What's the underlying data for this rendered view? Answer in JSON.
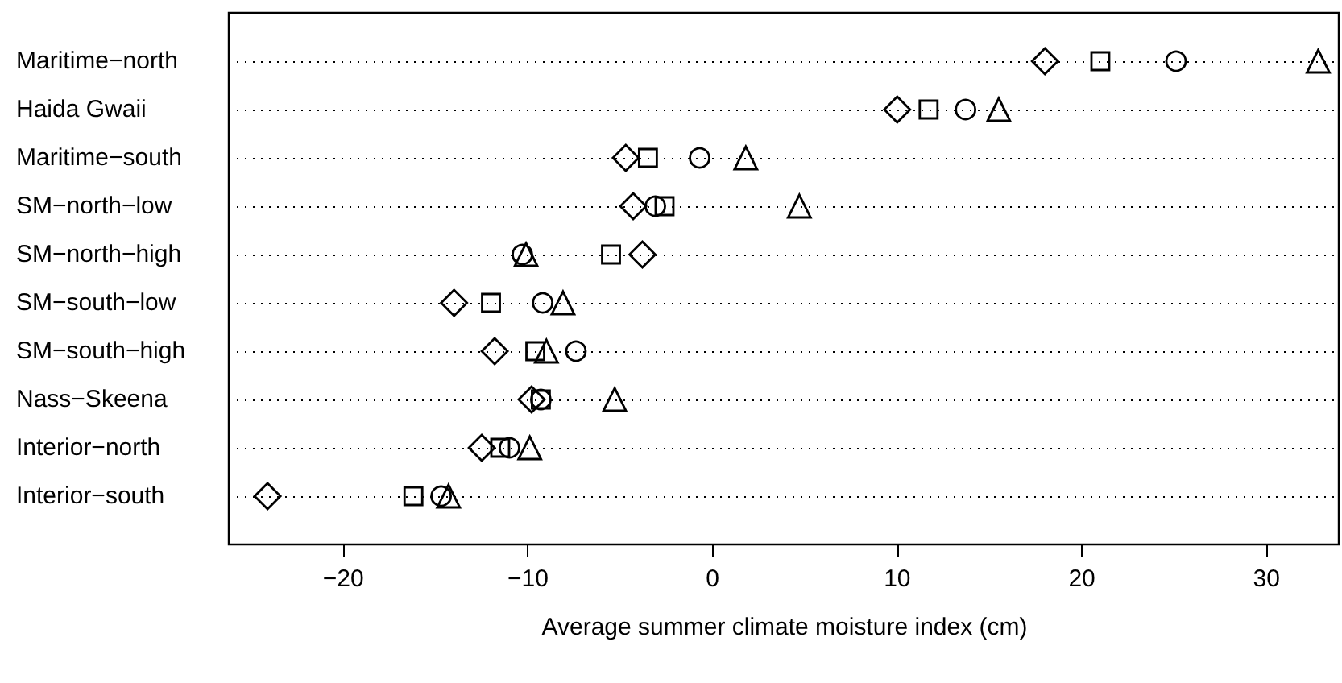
{
  "chart_data": {
    "type": "scatter",
    "orientation": "horizontal",
    "xlabel": "Average summer climate moisture index (cm)",
    "categories": [
      "Maritime−north",
      "Haida Gwaii",
      "Maritime−south",
      "SM−north−low",
      "SM−north−high",
      "SM−south−low",
      "SM−south−high",
      "Nass−Skeena",
      "Interior−north",
      "Interior−south"
    ],
    "series": [
      {
        "color": "#000000",
        "marker": "circle",
        "values": [
          25.1,
          13.7,
          -0.7,
          -3.1,
          -10.3,
          -9.2,
          -7.4,
          -9.3,
          -11.0,
          -14.7
        ]
      },
      {
        "color": "#000000",
        "marker": "square",
        "values": [
          21.0,
          11.7,
          -3.5,
          -2.6,
          -5.5,
          -12.0,
          -9.6,
          -9.3,
          -11.5,
          -16.2
        ]
      },
      {
        "color": "#000000",
        "marker": "triangle",
        "values": [
          32.8,
          15.5,
          1.8,
          4.7,
          -10.1,
          -8.1,
          -9.0,
          -5.3,
          -9.9,
          -14.3
        ]
      },
      {
        "color": "#000000",
        "marker": "diamond",
        "values": [
          18.0,
          10.0,
          -4.7,
          -4.3,
          -3.8,
          -14.0,
          -11.8,
          -9.8,
          -12.5,
          -24.1
        ]
      }
    ],
    "xlim": [
      -26.2,
      34.0
    ],
    "xticks": [
      {
        "value": -20,
        "label": "−20"
      },
      {
        "value": -10,
        "label": "−10"
      },
      0,
      10,
      20,
      30
    ],
    "grid": "y"
  }
}
